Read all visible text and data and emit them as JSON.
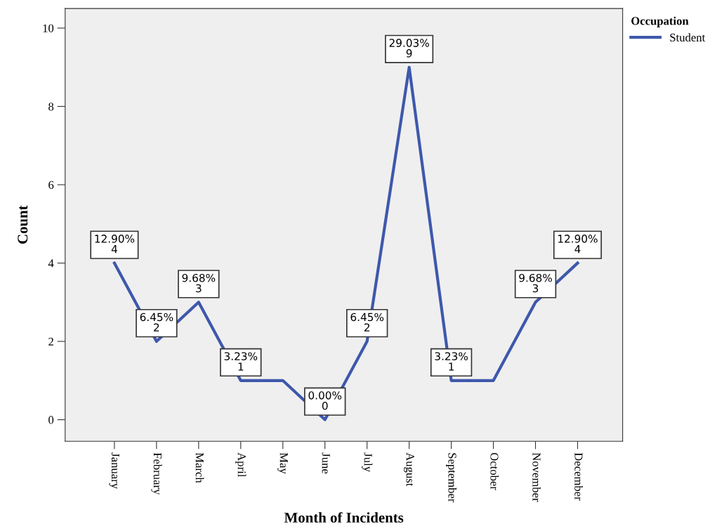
{
  "chart_data": {
    "type": "line",
    "xlabel": "Month of Incidents",
    "ylabel": "Count",
    "legend_title": "Occupation",
    "categories": [
      "January",
      "February",
      "March",
      "April",
      "May",
      "June",
      "July",
      "August",
      "September",
      "October",
      "November",
      "December"
    ],
    "series": [
      {
        "name": "Student",
        "color": "#3e58ac",
        "values": [
          4,
          2,
          3,
          1,
          1,
          0,
          2,
          9,
          1,
          1,
          3,
          4
        ],
        "value_labels": [
          "12.90%\n4",
          "6.45%\n2",
          "9.68%\n3",
          "3.23%\n1",
          null,
          "0.00%\n0",
          "6.45%\n2",
          "29.03%\n9",
          "3.23%\n1",
          null,
          "9.68%\n3",
          "12.90%\n4"
        ]
      }
    ],
    "ylim": [
      -0.55,
      10.5
    ],
    "yticks": [
      0,
      2,
      4,
      6,
      8,
      10
    ],
    "grid": false,
    "legend": "top right",
    "marker": "none",
    "line_style": "solid"
  }
}
